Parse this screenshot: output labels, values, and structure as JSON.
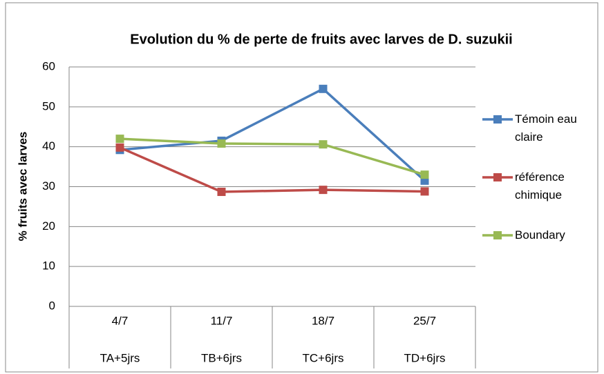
{
  "chart_data": {
    "type": "line",
    "title": "Evolution du % de perte de fruits avec larves de D. suzukii",
    "y_label": "% fruits avec larves",
    "categories": [
      "4/7",
      "11/7",
      "18/7",
      "25/7"
    ],
    "sub_categories": [
      "TA+5jrs",
      "TB+6jrs",
      "TC+6jrs",
      "TD+6jrs"
    ],
    "series": [
      {
        "name": "Témoin eau claire",
        "color": "#4a7ebb",
        "values": [
          39.2,
          41.5,
          54.5,
          31.5
        ]
      },
      {
        "name": "référence chimique",
        "color": "#be4b48",
        "values": [
          39.8,
          28.7,
          29.2,
          28.8
        ]
      },
      {
        "name": "Boundary",
        "color": "#98b954",
        "values": [
          42,
          40.8,
          40.6,
          33
        ]
      }
    ],
    "ylim": [
      0,
      60
    ],
    "yticks": [
      0,
      10,
      20,
      30,
      40,
      50,
      60
    ],
    "grid": true,
    "legend": "right"
  }
}
